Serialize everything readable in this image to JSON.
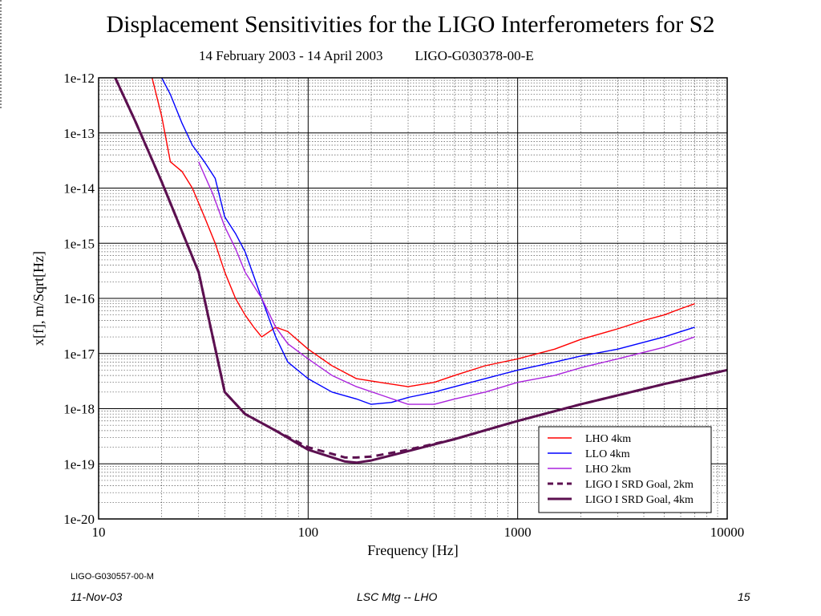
{
  "chart_data": {
    "type": "line",
    "title": "Displacement Sensitivities for the LIGO Interferometers for S2",
    "subtitle_left": "14 February 2003 - 14 April 2003",
    "subtitle_right": "LIGO-G030378-00-E",
    "xlabel": "Frequency [Hz]",
    "ylabel": "x[f], m/Sqrt[Hz]",
    "xscale": "log",
    "yscale": "log",
    "xlim": [
      10,
      10000
    ],
    "ylim": [
      1e-20,
      1e-12
    ],
    "x_ticks": [
      "10",
      "100",
      "1000",
      "10000"
    ],
    "y_ticks": [
      "1e-12",
      "1e-13",
      "1e-14",
      "1e-15",
      "1e-16",
      "1e-17",
      "1e-18",
      "1e-19",
      "1e-20"
    ],
    "grid": true,
    "legend_position": "bottom-right",
    "series": [
      {
        "name": "LHO 4km",
        "color": "#ff0000",
        "style": "solid",
        "x": [
          18,
          20,
          22,
          25,
          28,
          32,
          36,
          40,
          45,
          50,
          55,
          60,
          70,
          80,
          100,
          130,
          170,
          220,
          300,
          400,
          500,
          700,
          1000,
          1500,
          2000,
          3000,
          4000,
          5000,
          6000,
          7000
        ],
        "y": [
          1e-12,
          2e-13,
          3e-14,
          2e-14,
          1e-14,
          3e-15,
          1e-15,
          3e-16,
          1e-16,
          5e-17,
          3e-17,
          2e-17,
          3e-17,
          2.5e-17,
          1.2e-17,
          6e-18,
          3.5e-18,
          3e-18,
          2.5e-18,
          3e-18,
          4e-18,
          6e-18,
          8e-18,
          1.2e-17,
          1.8e-17,
          2.8e-17,
          4e-17,
          5e-17,
          6.5e-17,
          8e-17
        ]
      },
      {
        "name": "LLO 4km",
        "color": "#0000ff",
        "style": "solid",
        "x": [
          20,
          22,
          25,
          28,
          32,
          36,
          40,
          45,
          50,
          60,
          70,
          80,
          100,
          130,
          170,
          200,
          250,
          300,
          400,
          500,
          700,
          1000,
          1500,
          2000,
          3000,
          5000,
          7000
        ],
        "y": [
          1e-12,
          5e-13,
          1.5e-13,
          6e-14,
          3e-14,
          1.5e-14,
          3e-15,
          1.5e-15,
          7e-16,
          1e-16,
          2e-17,
          7e-18,
          3.5e-18,
          2e-18,
          1.5e-18,
          1.2e-18,
          1.3e-18,
          1.6e-18,
          2e-18,
          2.5e-18,
          3.5e-18,
          5e-18,
          7e-18,
          9e-18,
          1.2e-17,
          2e-17,
          3e-17
        ]
      },
      {
        "name": "LHO 2km",
        "color": "#aa22dd",
        "style": "solid",
        "x": [
          30,
          35,
          40,
          45,
          50,
          60,
          70,
          80,
          100,
          130,
          170,
          220,
          300,
          400,
          500,
          700,
          1000,
          1500,
          2000,
          3000,
          5000,
          7000
        ],
        "y": [
          3e-14,
          8e-15,
          2e-15,
          8e-16,
          3e-16,
          1e-16,
          3e-17,
          1.5e-17,
          8e-18,
          4e-18,
          2.5e-18,
          1.8e-18,
          1.2e-18,
          1.2e-18,
          1.5e-18,
          2e-18,
          3e-18,
          4e-18,
          5.5e-18,
          8e-18,
          1.3e-17,
          2e-17
        ]
      },
      {
        "name": "LIGO I SRD Goal, 2km",
        "color": "#5c1050",
        "style": "dashed",
        "x": [
          12,
          15,
          20,
          30,
          40,
          50,
          70,
          100,
          150,
          170,
          200,
          300,
          500,
          1000,
          2000,
          5000,
          10000
        ],
        "y": [
          1e-12,
          1.6e-13,
          1.3e-14,
          3e-16,
          2e-18,
          8e-19,
          4e-19,
          2e-19,
          1.3e-19,
          1.3e-19,
          1.35e-19,
          1.8e-19,
          2.8e-19,
          6e-19,
          1.2e-18,
          2.8e-18,
          5e-18
        ]
      },
      {
        "name": "LIGO I SRD Goal, 4km",
        "color": "#5c1050",
        "style": "solid",
        "x": [
          12,
          15,
          20,
          30,
          40,
          50,
          70,
          100,
          150,
          170,
          200,
          300,
          500,
          1000,
          2000,
          5000,
          10000
        ],
        "y": [
          1e-12,
          1.6e-13,
          1.3e-14,
          3e-16,
          2e-18,
          8e-19,
          4e-19,
          1.8e-19,
          1.1e-19,
          1.05e-19,
          1.15e-19,
          1.7e-19,
          2.8e-19,
          6e-19,
          1.2e-18,
          2.8e-18,
          5e-18
        ]
      }
    ]
  },
  "footer": {
    "doc_id": "LIGO-G030557-00-M",
    "date": "11-Nov-03",
    "title": "LSC Mtg -- LHO",
    "page": "15"
  }
}
